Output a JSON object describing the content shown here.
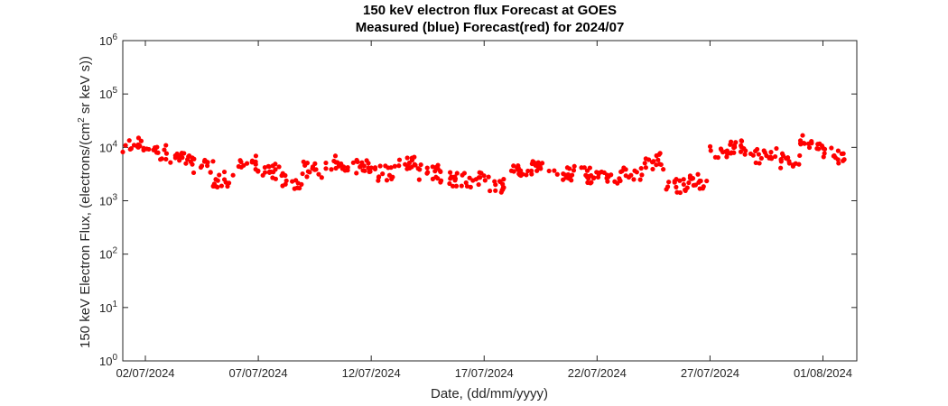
{
  "chart_data": {
    "type": "scatter",
    "title": "150 keV electron flux Forecast at GOES",
    "subtitle": "Measured (blue) Forecast(red) for 2024/07",
    "xlabel": "Date, (dd/mm/yyyy)",
    "ylabel_prefix": "150 keV Electron Flux, (electrons/(cm",
    "ylabel_sup": "2",
    "ylabel_suffix": " sr keV s))",
    "yscale": "log",
    "ylim": [
      1,
      1000000
    ],
    "yticks": [
      {
        "base": "10",
        "exp": "0",
        "value": 1
      },
      {
        "base": "10",
        "exp": "1",
        "value": 10
      },
      {
        "base": "10",
        "exp": "2",
        "value": 100
      },
      {
        "base": "10",
        "exp": "3",
        "value": 1000
      },
      {
        "base": "10",
        "exp": "4",
        "value": 10000
      },
      {
        "base": "10",
        "exp": "5",
        "value": 100000
      },
      {
        "base": "10",
        "exp": "6",
        "value": 1000000
      }
    ],
    "xlim": [
      "2024-07-01 00:00",
      "2024-08-02 12:00"
    ],
    "xticks": [
      {
        "label": "02/07/2024",
        "date": "2024-07-02"
      },
      {
        "label": "07/07/2024",
        "date": "2024-07-07"
      },
      {
        "label": "12/07/2024",
        "date": "2024-07-12"
      },
      {
        "label": "17/07/2024",
        "date": "2024-07-17"
      },
      {
        "label": "22/07/2024",
        "date": "2024-07-22"
      },
      {
        "label": "27/07/2024",
        "date": "2024-07-27"
      },
      {
        "label": "01/08/2024",
        "date": "2024-08-01"
      }
    ],
    "grid": false,
    "series": [
      {
        "color": "#ff0000",
        "marker": "filled-circle",
        "x": [
          "2024-07-01",
          "2024-07-02",
          "2024-07-03",
          "2024-07-04",
          "2024-07-05",
          "2024-07-06",
          "2024-07-07",
          "2024-07-08",
          "2024-07-09",
          "2024-07-10",
          "2024-07-11",
          "2024-07-12",
          "2024-07-13",
          "2024-07-14",
          "2024-07-15",
          "2024-07-16",
          "2024-07-17",
          "2024-07-18",
          "2024-07-19",
          "2024-07-20",
          "2024-07-21",
          "2024-07-22",
          "2024-07-23",
          "2024-07-24",
          "2024-07-25",
          "2024-07-26",
          "2024-07-27",
          "2024-07-28",
          "2024-07-29",
          "2024-07-30",
          "2024-07-31",
          "2024-08-01"
        ],
        "y": [
          11000,
          8000,
          6500,
          4500,
          2500,
          5000,
          3500,
          2300,
          3800,
          5200,
          4300,
          3200,
          4800,
          3400,
          2600,
          2400,
          2000,
          3800,
          4000,
          3200,
          3000,
          2900,
          3000,
          5500,
          1800,
          2200,
          9000,
          9500,
          7000,
          5500,
          12000,
          7000
        ]
      }
    ]
  }
}
